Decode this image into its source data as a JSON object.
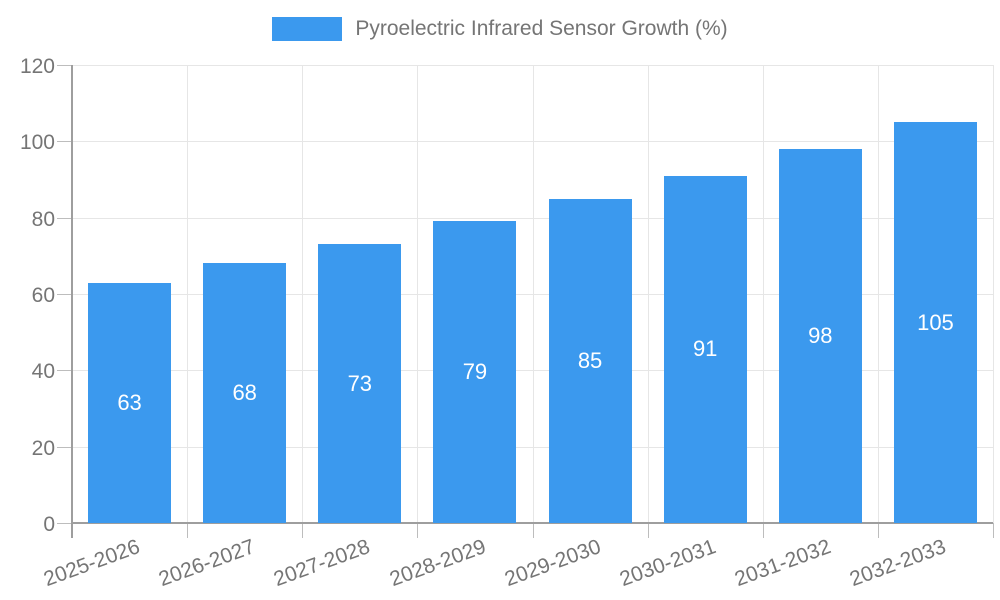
{
  "chart_data": {
    "type": "bar",
    "title": "Pyroelectric Infrared Sensor Growth (%)",
    "legend": {
      "position": "top",
      "entries": [
        "Pyroelectric Infrared Sensor Growth (%)"
      ]
    },
    "categories": [
      "2025-2026",
      "2026-2027",
      "2027-2028",
      "2028-2029",
      "2029-2030",
      "2030-2031",
      "2031-2032",
      "2032-2033"
    ],
    "values": [
      63,
      68,
      73,
      79,
      85,
      91,
      98,
      105
    ],
    "value_labels": [
      "63",
      "68",
      "73",
      "79",
      "85",
      "91",
      "98",
      "105"
    ],
    "value_labels_shown": true,
    "xlabel": "",
    "ylabel": "",
    "ylim": [
      0,
      120
    ],
    "yticks": [
      0,
      20,
      40,
      60,
      80,
      100,
      120
    ],
    "grid": true,
    "x_label_rotation_deg": -20,
    "colors": {
      "bar": "#3b99ee",
      "grid_line": "#e6e6e6",
      "axis_line": "#9e9e9e",
      "tick_mark": "#bdbdbd",
      "tick_text": "#757575",
      "value_label": "#ffffff",
      "background": "#ffffff"
    }
  }
}
